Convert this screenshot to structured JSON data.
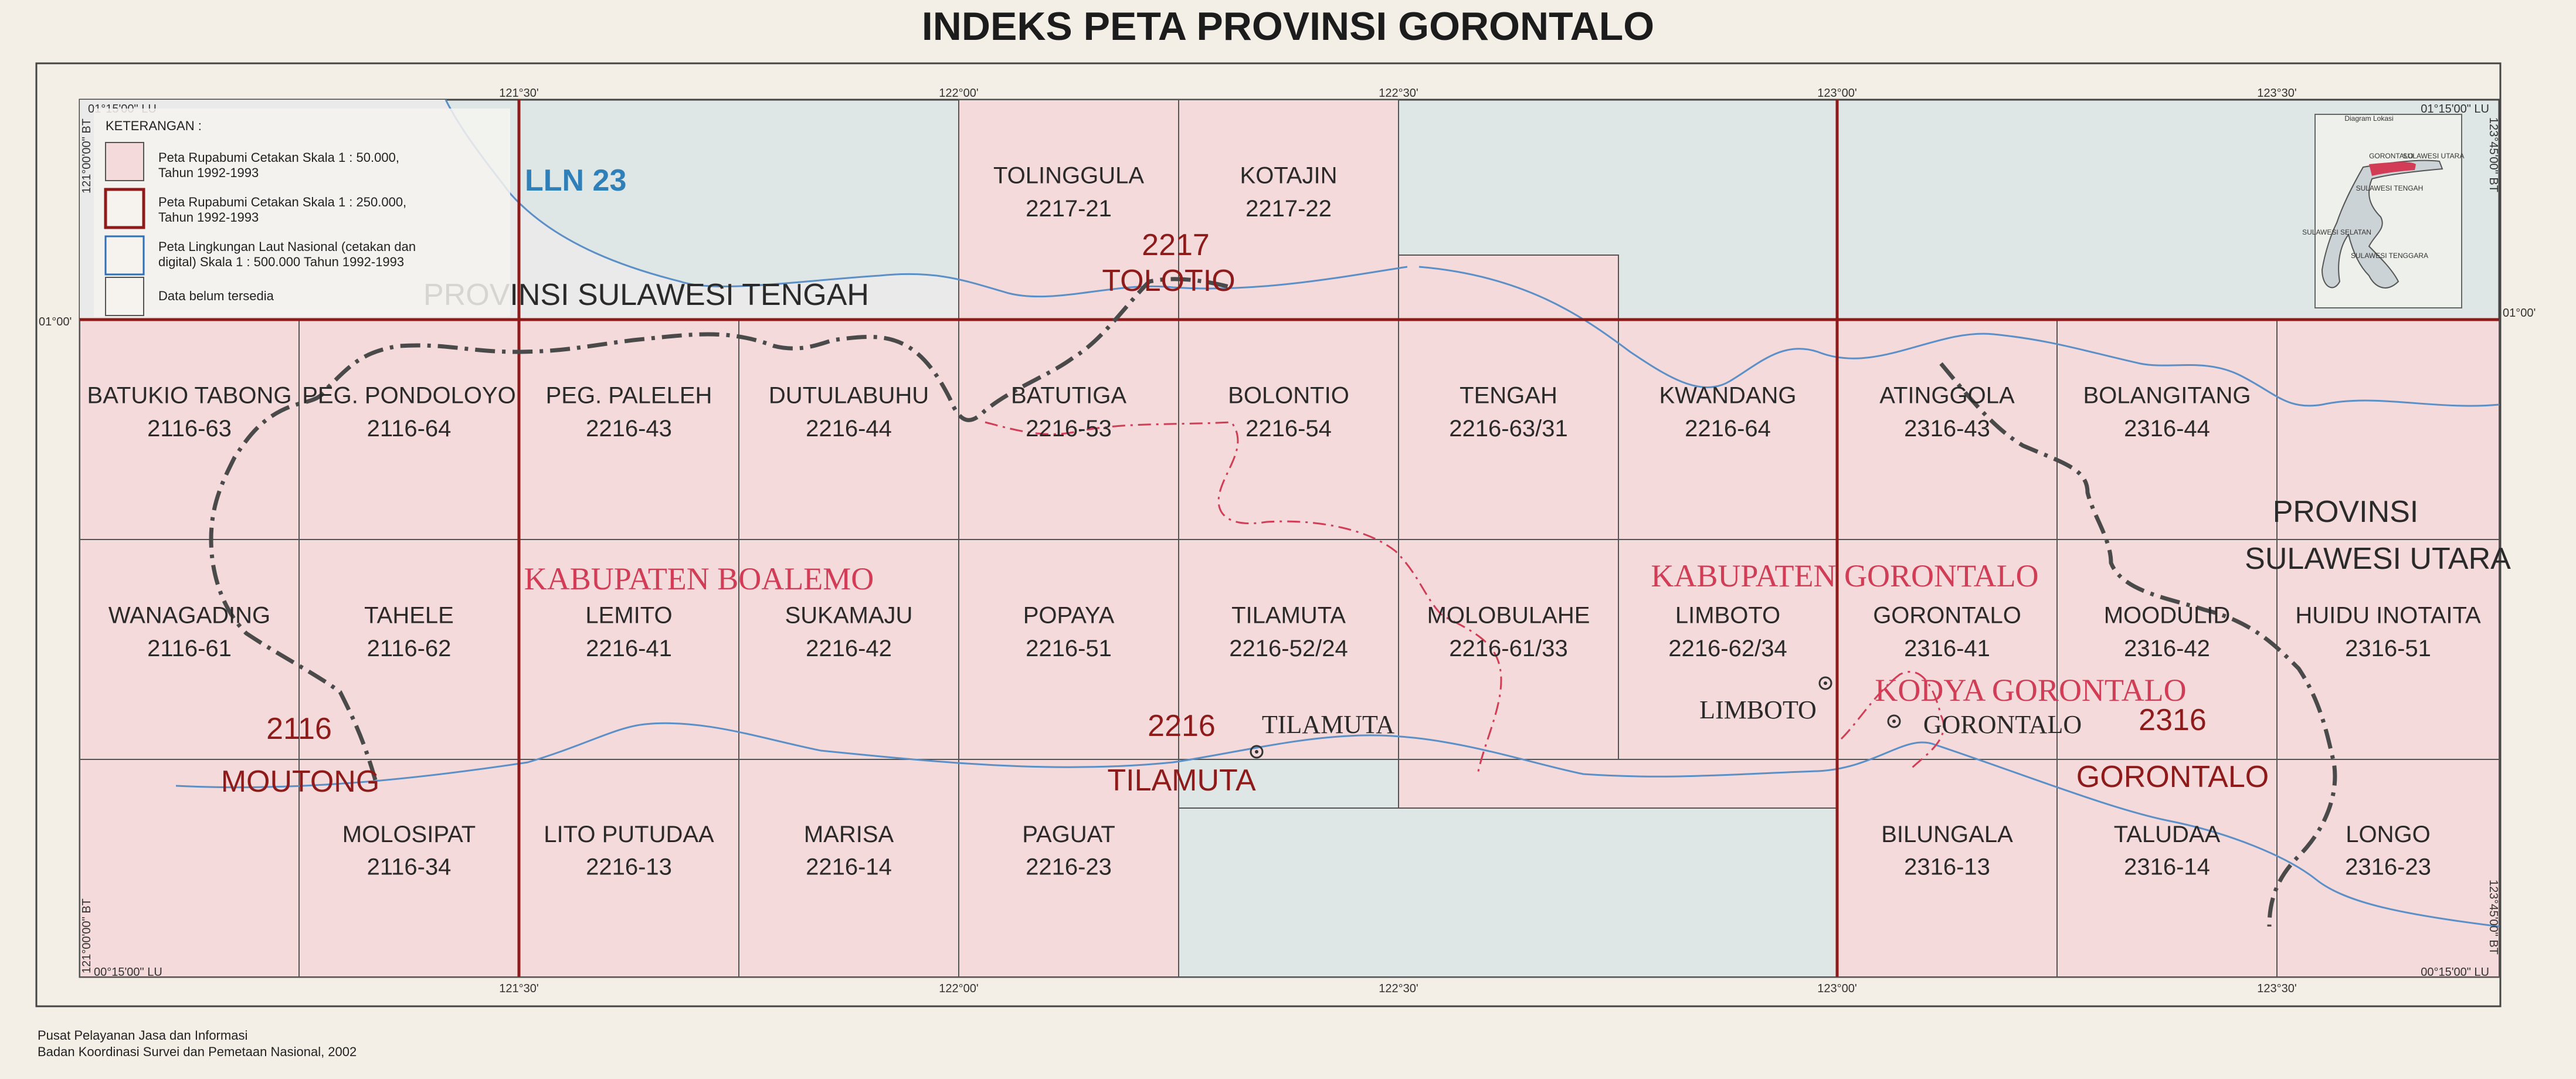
{
  "title": "INDEKS PETA PROVINSI GORONTALO",
  "legend": {
    "heading": "KETERANGAN :",
    "items": [
      {
        "line1": "Peta Rupabumi Cetakan Skala 1 : 50.000,",
        "line2": "Tahun 1992-1993"
      },
      {
        "line1": "Peta Rupabumi Cetakan Skala 1 : 250.000,",
        "line2": "Tahun 1992-1993"
      },
      {
        "line1": "Peta Lingkungan Laut Nasional (cetakan dan",
        "line2": "digital) Skala 1 : 500.000 Tahun 1992-1993"
      },
      {
        "line1": "Data belum tersedia",
        "line2": ""
      }
    ]
  },
  "inset": {
    "title": "Diagram Lokasi",
    "labels": [
      "GORONTALO",
      "SULAWESI UTARA",
      "SULAWESI TENGAH",
      "SULAWESI SELATAN",
      "SULAWESI TENGGARA"
    ]
  },
  "ticks": {
    "top_lon": [
      "121°30'",
      "122°00'",
      "122°30'",
      "123°00'",
      "123°30'"
    ],
    "bottom_lon": [
      "121°30'",
      "122°00'",
      "122°30'",
      "123°00'",
      "123°30'"
    ],
    "corner_tl_lat": "01°15'00\" LU",
    "corner_tr_lat": "01°15'00\" LU",
    "corner_bl_lat": "00°15'00\" LU",
    "corner_br_lat": "00°15'00\" LU",
    "left_tl_lon": "121°00'00\" BT",
    "left_bl_lon": "121°00'00\" BT",
    "right_tr_lon": "123°45'00\" BT",
    "right_br_lon": "123°45'00\" BT",
    "lat_left": "01°00'",
    "lat_right": "01°00'"
  },
  "sheets": [
    {
      "name": "TOLINGGULA",
      "code": "2217-21"
    },
    {
      "name": "KOTAJIN",
      "code": "2217-22"
    },
    {
      "name": "BATUKIO TABONG",
      "code": "2116-63"
    },
    {
      "name": "PEG. PONDOLOYO",
      "code": "2116-64"
    },
    {
      "name": "PEG. PALELEH",
      "code": "2216-43"
    },
    {
      "name": "DUTULABUHU",
      "code": "2216-44"
    },
    {
      "name": "BATUTIGA",
      "code": "2216-53"
    },
    {
      "name": "BOLONTIO",
      "code": "2216-54"
    },
    {
      "name": "TENGAH",
      "code": "2216-63/31"
    },
    {
      "name": "KWANDANG",
      "code": "2216-64"
    },
    {
      "name": "ATINGGOLA",
      "code": "2316-43"
    },
    {
      "name": "BOLANGITANG",
      "code": "2316-44"
    },
    {
      "name": "WANAGADING",
      "code": "2116-61"
    },
    {
      "name": "TAHELE",
      "code": "2116-62"
    },
    {
      "name": "LEMITO",
      "code": "2216-41"
    },
    {
      "name": "SUKAMAJU",
      "code": "2216-42"
    },
    {
      "name": "POPAYA",
      "code": "2216-51"
    },
    {
      "name": "TILAMUTA",
      "code": "2216-52/24"
    },
    {
      "name": "MOLOBULAHE",
      "code": "2216-61/33"
    },
    {
      "name": "LIMBOTO",
      "code": "2216-62/34"
    },
    {
      "name": "GORONTALO",
      "code": "2316-41"
    },
    {
      "name": "MOODULID",
      "code": "2316-42"
    },
    {
      "name": "HUIDU INOTAITA",
      "code": "2316-51"
    },
    {
      "name": "MOLOSIPAT",
      "code": "2116-34"
    },
    {
      "name": "LITO PUTUDAA",
      "code": "2216-13"
    },
    {
      "name": "MARISA",
      "code": "2216-14"
    },
    {
      "name": "PAGUAT",
      "code": "2216-23"
    },
    {
      "name": "BILUNGALA",
      "code": "2316-13"
    },
    {
      "name": "TALUDAA",
      "code": "2316-14"
    },
    {
      "name": "LONGO",
      "code": "2316-23"
    }
  ],
  "regions": [
    {
      "code": "2217",
      "name": "TOLOTIO"
    },
    {
      "code": "2116",
      "name": "MOUTONG"
    },
    {
      "code": "2216",
      "name": "TILAMUTA"
    },
    {
      "code": "2316",
      "name": "GORONTALO"
    }
  ],
  "lln": "LLN 23",
  "provinces": {
    "sulteng": "PROVINSI SULAWESI TENGAH",
    "sulut_1": "PROVINSI",
    "sulut_2": "SULAWESI UTARA"
  },
  "kabupaten": {
    "boalemo": "KABUPATEN BOALEMO",
    "gorontalo": "KABUPATEN GORONTALO",
    "kodya": "KODYA GORONTALO"
  },
  "towns": {
    "tilamuta": "TILAMUTA",
    "limboto": "LIMBOTO",
    "gorontalo": "GORONTALO"
  },
  "credits": {
    "line1": "Pusat Pelayanan Jasa dan Informasi",
    "line2": "Badan Koordinasi Survei dan Pemetaan Nasional, 2002"
  },
  "colors": {
    "sheet_fill": "#f4dada",
    "sea": "#dfe6e6",
    "grid": "#555555",
    "boundary_250k": "#8e1a1a",
    "coast": "#5b8fc7",
    "kab_label": "#d23c55"
  }
}
